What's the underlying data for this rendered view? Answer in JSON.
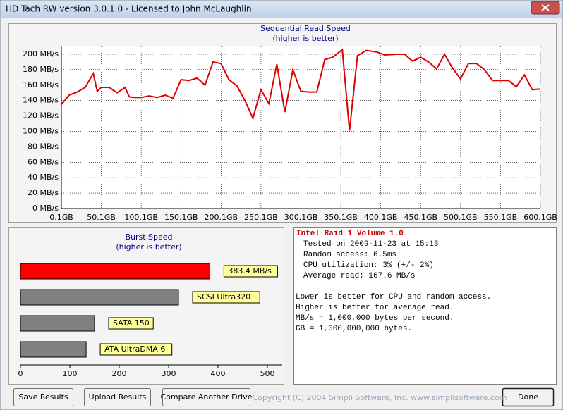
{
  "window_title": "HD Tach RW version 3.0.1.0 - Licensed to John McLaughlin",
  "chart_data": [
    {
      "type": "line",
      "title": "Sequential Read Speed",
      "subtitle": "(higher is better)",
      "x": [
        0.1,
        10,
        20,
        30,
        40,
        45,
        50,
        60,
        70,
        80,
        85,
        90,
        100,
        110,
        120,
        130,
        140,
        150,
        160,
        170,
        180,
        190,
        200,
        210,
        220,
        230,
        240,
        250,
        260,
        270,
        280,
        290,
        300,
        310,
        320,
        330,
        340,
        352,
        361,
        371,
        382,
        395,
        405,
        420,
        430,
        440,
        450,
        460,
        470,
        480,
        490,
        500,
        510,
        520,
        530,
        540,
        560,
        570,
        580,
        590,
        600.1
      ],
      "values": [
        135,
        147,
        151,
        157,
        175,
        152,
        157,
        157,
        150,
        157,
        145,
        144,
        144,
        146,
        144,
        147,
        143,
        167,
        166,
        169,
        160,
        190,
        188,
        167,
        159,
        140,
        117,
        154,
        136,
        187,
        125,
        180,
        152,
        151,
        151,
        193,
        196,
        206,
        101,
        198,
        205,
        203,
        199,
        200,
        200,
        191,
        196,
        190,
        181,
        200,
        182,
        168,
        188,
        188,
        180,
        166,
        166,
        158,
        173,
        154,
        155
      ],
      "color": "#dd0000",
      "grid": true,
      "xlim": [
        0.1,
        600.1
      ],
      "xticks": [
        {
          "value": 0.1,
          "label": "0.1GB"
        },
        {
          "value": 50.1,
          "label": "50.1GB"
        },
        {
          "value": 100.1,
          "label": "100.1GB"
        },
        {
          "value": 150.1,
          "label": "150.1GB"
        },
        {
          "value": 200.1,
          "label": "200.1GB"
        },
        {
          "value": 250.1,
          "label": "250.1GB"
        },
        {
          "value": 300.1,
          "label": "300.1GB"
        },
        {
          "value": 350.1,
          "label": "350.1GB"
        },
        {
          "value": 400.1,
          "label": "400.1GB"
        },
        {
          "value": 450.1,
          "label": "450.1GB"
        },
        {
          "value": 500.1,
          "label": "500.1GB"
        },
        {
          "value": 550.1,
          "label": "550.1GB"
        },
        {
          "value": 600.1,
          "label": "600.1GB"
        }
      ],
      "ylim": [
        0,
        210
      ],
      "yticks": [
        {
          "value": 0,
          "label": "0 MB/s"
        },
        {
          "value": 20,
          "label": "20 MB/s"
        },
        {
          "value": 40,
          "label": "40 MB/s"
        },
        {
          "value": 60,
          "label": "60 MB/s"
        },
        {
          "value": 80,
          "label": "80 MB/s"
        },
        {
          "value": 100,
          "label": "100 MB/s"
        },
        {
          "value": 120,
          "label": "120 MB/s"
        },
        {
          "value": 140,
          "label": "140 MB/s"
        },
        {
          "value": 160,
          "label": "160 MB/s"
        },
        {
          "value": 180,
          "label": "180 MB/s"
        },
        {
          "value": 200,
          "label": "200 MB/s"
        }
      ]
    },
    {
      "type": "bar",
      "orientation": "horizontal",
      "title": "Burst Speed",
      "subtitle": "(higher is better)",
      "categories": [
        null,
        "SCSI Ultra320",
        "SATA 150",
        "ATA UltraDMA 6"
      ],
      "values": [
        383.4,
        320,
        150,
        133
      ],
      "value_labels": [
        "383.4 MB/s",
        null,
        null,
        null
      ],
      "colors": [
        "#ff0000",
        "#808080",
        "#808080",
        "#808080"
      ],
      "grid": false,
      "xlim": [
        0,
        530
      ],
      "xticks": [
        0,
        100,
        200,
        300,
        400,
        500
      ]
    }
  ],
  "info": {
    "heading": "Intel Raid 1 Volume 1.0.",
    "lines": [
      "Tested on 2009-11-23 at 15:13",
      "Random access: 6.5ms",
      "CPU utilization: 3% (+/- 2%)",
      "Average read: 167.6 MB/s"
    ],
    "notes": [
      "Lower is better for CPU and random access.",
      "Higher is better for average read.",
      "MB/s = 1,000,000 bytes per second.",
      "GB = 1,000,000,000 bytes."
    ]
  },
  "buttons": [
    "Save Results",
    "Upload Results",
    "Compare Another Drive",
    "Done"
  ],
  "copyright": "Copyright (C) 2004 Simpli Software, Inc. www.simplisoftware.com"
}
